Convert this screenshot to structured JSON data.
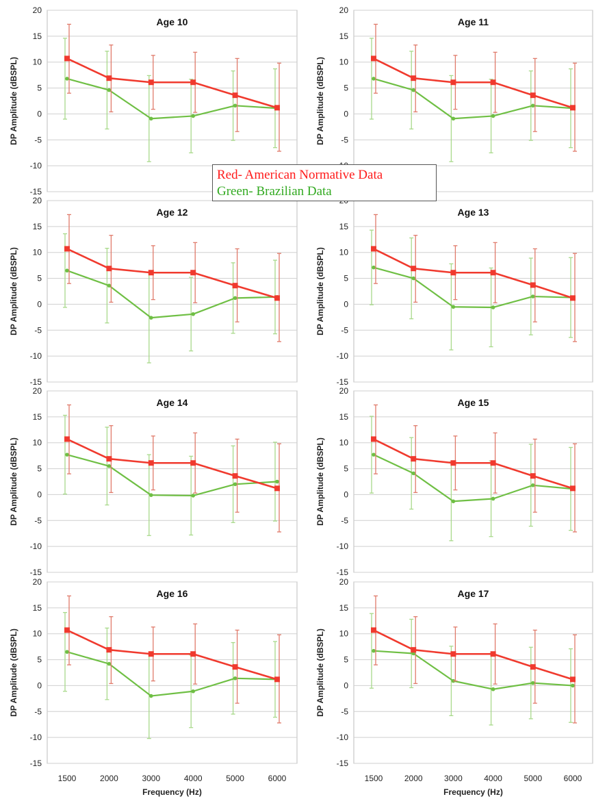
{
  "colors": {
    "american": "#f03a2e",
    "american_err": "#e07a6a",
    "brazilian": "#6fbf44",
    "brazilian_err": "#a8d98a",
    "grid": "#cfcfcf",
    "frame": "#bdbdbd"
  },
  "legend": {
    "red_label": "Red- American Normative Data",
    "green_label": "Green- Brazilian Data"
  },
  "chart_data": [
    {
      "type": "line",
      "title": "Age 10",
      "ylabel": "DP Amplitude (dBSPL)",
      "xlabel": "",
      "x": [
        "1500",
        "2000",
        "3000",
        "4000",
        "5000",
        "6000"
      ],
      "ylim": [
        -15,
        20
      ],
      "yticks": [
        -15,
        -10,
        -5,
        0,
        5,
        10,
        15,
        20
      ],
      "grid": true,
      "series": [
        {
          "key": "american",
          "values": [
            10.7,
            6.9,
            6.1,
            6.1,
            3.6,
            1.2
          ],
          "err_low": [
            4.0,
            0.4,
            0.9,
            0.3,
            -3.4,
            -7.2
          ],
          "err_high": [
            17.3,
            13.3,
            11.3,
            11.9,
            10.7,
            9.8
          ]
        },
        {
          "key": "brazilian",
          "values": [
            6.8,
            4.6,
            -0.9,
            -0.4,
            1.6,
            1.1
          ],
          "err_low": [
            -1.0,
            -2.9,
            -9.2,
            -7.5,
            -5.1,
            -6.5
          ],
          "err_high": [
            14.6,
            12.1,
            7.4,
            6.7,
            8.3,
            8.7
          ]
        }
      ]
    },
    {
      "type": "line",
      "title": "Age 11",
      "ylabel": "DP Amplitude (dBSPL)",
      "xlabel": "",
      "x": [
        "1500",
        "2000",
        "3000",
        "4000",
        "5000",
        "6000"
      ],
      "ylim": [
        -15,
        20
      ],
      "yticks": [
        -15,
        -10,
        -5,
        0,
        5,
        10,
        15,
        20
      ],
      "grid": true,
      "series": [
        {
          "key": "american",
          "values": [
            10.7,
            6.9,
            6.1,
            6.1,
            3.6,
            1.2
          ],
          "err_low": [
            4.0,
            0.4,
            0.9,
            0.3,
            -3.4,
            -7.2
          ],
          "err_high": [
            17.3,
            13.3,
            11.3,
            11.9,
            10.7,
            9.8
          ]
        },
        {
          "key": "brazilian",
          "values": [
            6.8,
            4.6,
            -0.9,
            -0.4,
            1.6,
            1.1
          ],
          "err_low": [
            -1.0,
            -2.9,
            -9.2,
            -7.5,
            -5.1,
            -6.5
          ],
          "err_high": [
            14.6,
            12.1,
            7.4,
            6.7,
            8.3,
            8.7
          ]
        }
      ]
    },
    {
      "type": "line",
      "title": "Age 12",
      "ylabel": "DP Amplitude (dBSPL)",
      "xlabel": "",
      "x": [
        "1500",
        "2000",
        "3000",
        "4000",
        "5000",
        "6000"
      ],
      "ylim": [
        -15,
        20
      ],
      "yticks": [
        -15,
        -10,
        -5,
        0,
        5,
        10,
        15,
        20
      ],
      "grid": true,
      "series": [
        {
          "key": "american",
          "values": [
            10.7,
            6.9,
            6.1,
            6.1,
            3.6,
            1.2
          ],
          "err_low": [
            4.0,
            0.4,
            0.9,
            0.3,
            -3.4,
            -7.2
          ],
          "err_high": [
            17.3,
            13.3,
            11.3,
            11.9,
            10.7,
            9.8
          ]
        },
        {
          "key": "brazilian",
          "values": [
            6.5,
            3.6,
            -2.6,
            -1.9,
            1.2,
            1.4
          ],
          "err_low": [
            -0.6,
            -3.6,
            -11.3,
            -9.0,
            -5.6,
            -5.7
          ],
          "err_high": [
            13.6,
            10.8,
            6.1,
            5.2,
            8.0,
            8.5
          ]
        }
      ]
    },
    {
      "type": "line",
      "title": "Age 13",
      "ylabel": "DP Amplitude (dBSPL)",
      "xlabel": "",
      "x": [
        "1500",
        "2000",
        "3000",
        "4000",
        "5000",
        "6000"
      ],
      "ylim": [
        -15,
        20
      ],
      "yticks": [
        -15,
        -10,
        -5,
        0,
        5,
        10,
        15,
        20
      ],
      "grid": true,
      "series": [
        {
          "key": "american",
          "values": [
            10.7,
            6.9,
            6.1,
            6.1,
            3.7,
            1.2
          ],
          "err_low": [
            4.0,
            0.4,
            0.9,
            0.3,
            -3.4,
            -7.2
          ],
          "err_high": [
            17.3,
            13.3,
            11.3,
            11.9,
            10.7,
            9.8
          ]
        },
        {
          "key": "brazilian",
          "values": [
            7.1,
            5.0,
            -0.5,
            -0.6,
            1.5,
            1.3
          ],
          "err_low": [
            -0.1,
            -2.8,
            -8.8,
            -8.2,
            -5.9,
            -6.4
          ],
          "err_high": [
            14.3,
            12.8,
            7.8,
            7.0,
            8.9,
            9.0
          ]
        }
      ]
    },
    {
      "type": "line",
      "title": "Age 14",
      "ylabel": "DP Amplitude (dBSPL)",
      "xlabel": "",
      "x": [
        "1500",
        "2000",
        "3000",
        "4000",
        "5000",
        "6000"
      ],
      "ylim": [
        -15,
        20
      ],
      "yticks": [
        -15,
        -10,
        -5,
        0,
        5,
        10,
        15,
        20
      ],
      "grid": true,
      "series": [
        {
          "key": "american",
          "values": [
            10.7,
            6.9,
            6.1,
            6.1,
            3.6,
            1.2
          ],
          "err_low": [
            4.0,
            0.4,
            0.9,
            0.3,
            -3.4,
            -7.2
          ],
          "err_high": [
            17.3,
            13.3,
            11.3,
            11.9,
            10.7,
            9.8
          ]
        },
        {
          "key": "brazilian",
          "values": [
            7.7,
            5.5,
            -0.1,
            -0.2,
            2.0,
            2.5
          ],
          "err_low": [
            0.1,
            -2.0,
            -7.9,
            -7.8,
            -5.4,
            -5.1
          ],
          "err_high": [
            15.3,
            13.0,
            7.7,
            7.4,
            9.4,
            10.1
          ]
        }
      ]
    },
    {
      "type": "line",
      "title": "Age 15",
      "ylabel": "DP Amplitude (dBSPL)",
      "xlabel": "",
      "x": [
        "1500",
        "2000",
        "3000",
        "4000",
        "5000",
        "6000"
      ],
      "ylim": [
        -15,
        20
      ],
      "yticks": [
        -15,
        -10,
        -5,
        0,
        5,
        10,
        15,
        20
      ],
      "grid": true,
      "series": [
        {
          "key": "american",
          "values": [
            10.7,
            6.9,
            6.1,
            6.1,
            3.6,
            1.2
          ],
          "err_low": [
            4.0,
            0.4,
            0.9,
            0.3,
            -3.4,
            -7.2
          ],
          "err_high": [
            17.3,
            13.3,
            11.3,
            11.9,
            10.7,
            9.8
          ]
        },
        {
          "key": "brazilian",
          "values": [
            7.7,
            4.1,
            -1.3,
            -0.8,
            1.8,
            1.1
          ],
          "err_low": [
            0.3,
            -2.8,
            -8.9,
            -8.1,
            -6.1,
            -6.9
          ],
          "err_high": [
            15.1,
            11.0,
            6.3,
            6.5,
            9.7,
            9.1
          ]
        }
      ]
    },
    {
      "type": "line",
      "title": "Age 16",
      "ylabel": "DP Amplitude (dBSPL)",
      "xlabel": "Frequency (Hz)",
      "x": [
        "1500",
        "2000",
        "3000",
        "4000",
        "5000",
        "6000"
      ],
      "ylim": [
        -15,
        20
      ],
      "yticks": [
        -15,
        -10,
        -5,
        0,
        5,
        10,
        15,
        20
      ],
      "grid": true,
      "series": [
        {
          "key": "american",
          "values": [
            10.7,
            6.9,
            6.1,
            6.1,
            3.6,
            1.2
          ],
          "err_low": [
            4.0,
            0.4,
            0.9,
            0.3,
            -3.4,
            -7.2
          ],
          "err_high": [
            17.3,
            13.3,
            11.3,
            11.9,
            10.7,
            9.8
          ]
        },
        {
          "key": "brazilian",
          "values": [
            6.5,
            4.2,
            -2.0,
            -1.1,
            1.4,
            1.2
          ],
          "err_low": [
            -1.1,
            -2.7,
            -10.2,
            -8.1,
            -5.5,
            -6.1
          ],
          "err_high": [
            14.1,
            11.1,
            6.2,
            5.9,
            8.3,
            8.5
          ]
        }
      ]
    },
    {
      "type": "line",
      "title": "Age 17",
      "ylabel": "DP Amplitude (dBSPL)",
      "xlabel": "Frequency (Hz)",
      "x": [
        "1500",
        "2000",
        "3000",
        "4000",
        "5000",
        "6000"
      ],
      "ylim": [
        -15,
        20
      ],
      "yticks": [
        -15,
        -10,
        -5,
        0,
        5,
        10,
        15,
        20
      ],
      "grid": true,
      "series": [
        {
          "key": "american",
          "values": [
            10.7,
            6.9,
            6.1,
            6.1,
            3.6,
            1.2
          ],
          "err_low": [
            4.0,
            0.4,
            0.9,
            0.3,
            -3.4,
            -7.2
          ],
          "err_high": [
            17.3,
            13.3,
            11.3,
            11.9,
            10.7,
            9.8
          ]
        },
        {
          "key": "brazilian",
          "values": [
            6.7,
            6.2,
            0.9,
            -0.7,
            0.5,
            0.0
          ],
          "err_low": [
            -0.5,
            -0.4,
            -5.8,
            -7.6,
            -6.4,
            -7.1
          ],
          "err_high": [
            13.9,
            12.8,
            7.6,
            6.2,
            7.4,
            7.1
          ]
        }
      ]
    }
  ]
}
